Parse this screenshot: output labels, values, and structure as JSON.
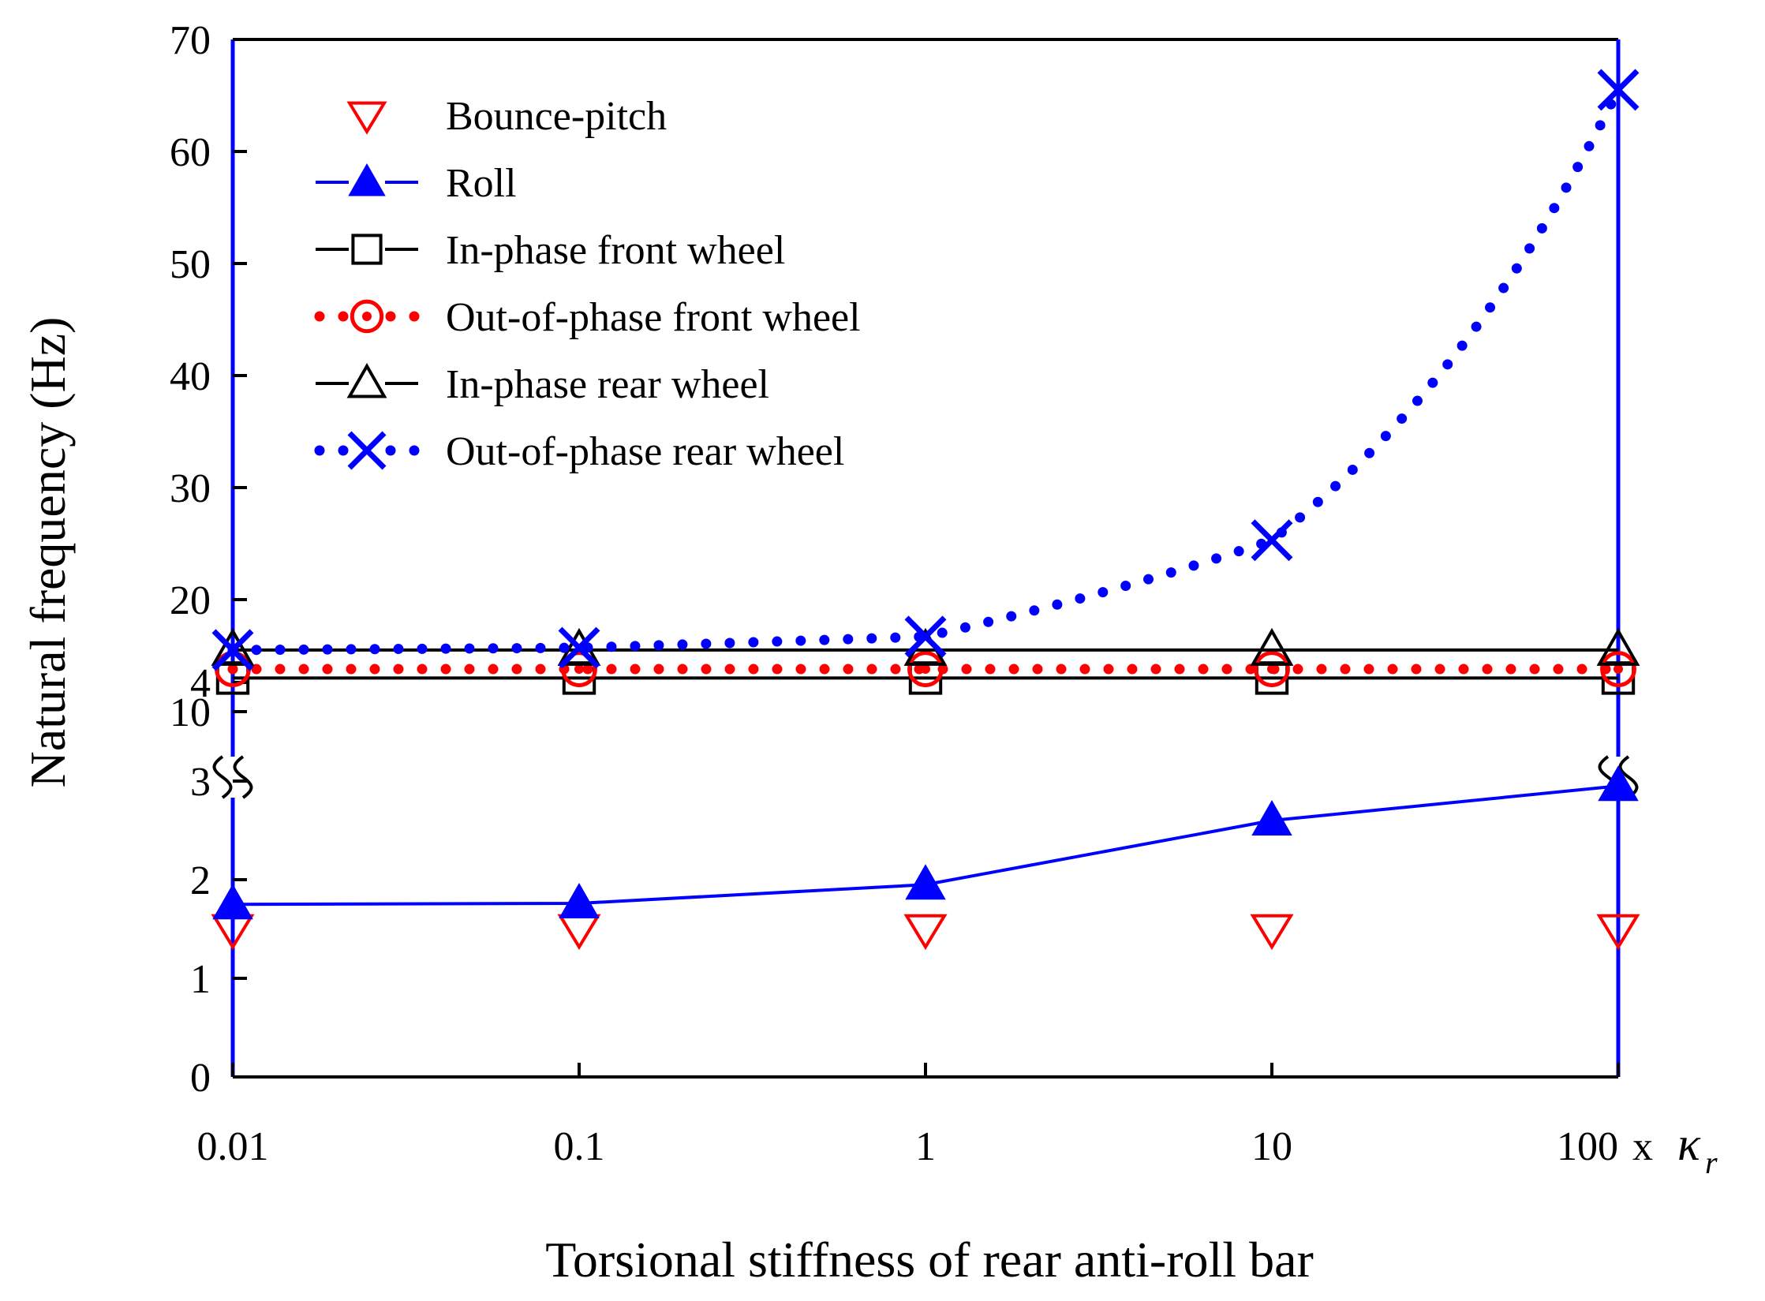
{
  "chart_data": {
    "type": "line",
    "title": "",
    "xlabel": "Torsional stiffness of rear anti-roll bar",
    "ylabel": "Natural frequency (Hz)",
    "x_scale": "log",
    "x_unit_prefix": "x",
    "x_unit_symbol": "κ",
    "x_unit_subscript": "r",
    "x_categories": [
      "0.01",
      "0.1",
      "1",
      "10",
      "100"
    ],
    "x": [
      0.01,
      0.1,
      1,
      10,
      100
    ],
    "y_axis_break": true,
    "y_lower_range": [
      0,
      4.7
    ],
    "y_upper_range": [
      8,
      70
    ],
    "y_ticks": [
      "0",
      "1",
      "2",
      "3",
      "4",
      "10",
      "20",
      "30",
      "40",
      "50",
      "60",
      "70"
    ],
    "legend_position": "top-left",
    "series": [
      {
        "name": "Bounce-pitch",
        "marker": "triangle-down-open",
        "line": "none",
        "color": "#ff0000",
        "values": [
          1.5,
          1.5,
          1.5,
          1.5,
          1.5
        ]
      },
      {
        "name": "Roll",
        "marker": "triangle-up-filled",
        "line": "solid",
        "color": "#0000ff",
        "values": [
          1.75,
          1.76,
          1.95,
          2.6,
          2.95
        ]
      },
      {
        "name": "In-phase front wheel",
        "marker": "square-open",
        "line": "solid",
        "color": "#000000",
        "values": [
          13.0,
          13.0,
          13.0,
          13.0,
          13.0
        ]
      },
      {
        "name": "Out-of-phase front wheel",
        "marker": "circle-dot-open",
        "line": "dotted",
        "color": "#ff0000",
        "values": [
          13.8,
          13.8,
          13.8,
          13.8,
          13.8
        ]
      },
      {
        "name": "In-phase rear wheel",
        "marker": "triangle-up-open",
        "line": "solid",
        "color": "#000000",
        "values": [
          15.5,
          15.5,
          15.5,
          15.5,
          15.5
        ]
      },
      {
        "name": "Out-of-phase rear wheel",
        "marker": "x",
        "line": "dotted",
        "color": "#0000ff",
        "values": [
          15.5,
          15.7,
          16.7,
          25.3,
          65.5
        ]
      }
    ]
  }
}
